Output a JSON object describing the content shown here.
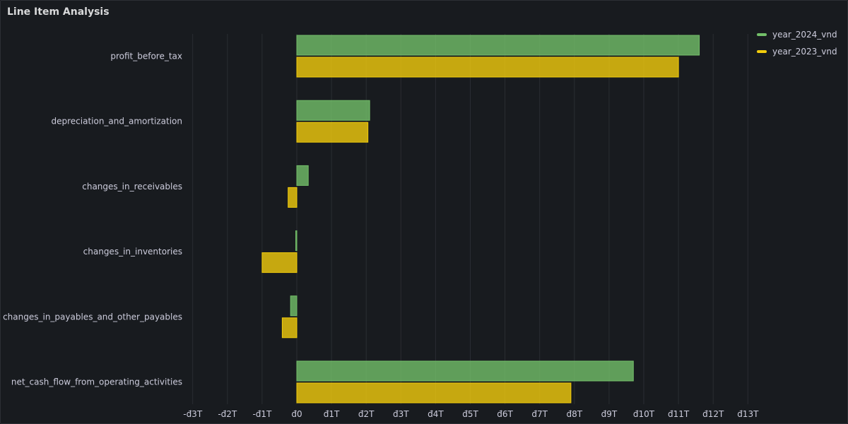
{
  "panel": {
    "title": "Line Item Analysis"
  },
  "chart_data": {
    "type": "bar",
    "orientation": "horizontal",
    "title": "Line Item Analysis",
    "categories": [
      "profit_before_tax",
      "depreciation_and_amortization",
      "changes_in_receivables",
      "changes_in_inventories",
      "changes_in_payables_and_other_payables",
      "net_cash_flow_from_operating_activities"
    ],
    "series": [
      {
        "name": "year_2024_vnd",
        "color": "#73bf69",
        "values": [
          11.6,
          2.1,
          0.33,
          -0.03,
          -0.18,
          9.7
        ]
      },
      {
        "name": "year_2023_vnd",
        "color": "#f2cc0c",
        "values": [
          11.0,
          2.05,
          -0.25,
          -1.0,
          -0.42,
          7.9
        ]
      }
    ],
    "unit": "trillion VND",
    "x_ticks": [
      "-đ3T",
      "-đ2T",
      "-đ1T",
      "đ0",
      "đ1T",
      "đ2T",
      "đ3T",
      "đ4T",
      "đ5T",
      "đ6T",
      "đ7T",
      "đ8T",
      "đ9T",
      "đ10T",
      "đ11T",
      "đ12T",
      "đ13T"
    ],
    "xlim": [
      -3,
      13
    ],
    "grid": true,
    "legend_position": "top-right"
  }
}
